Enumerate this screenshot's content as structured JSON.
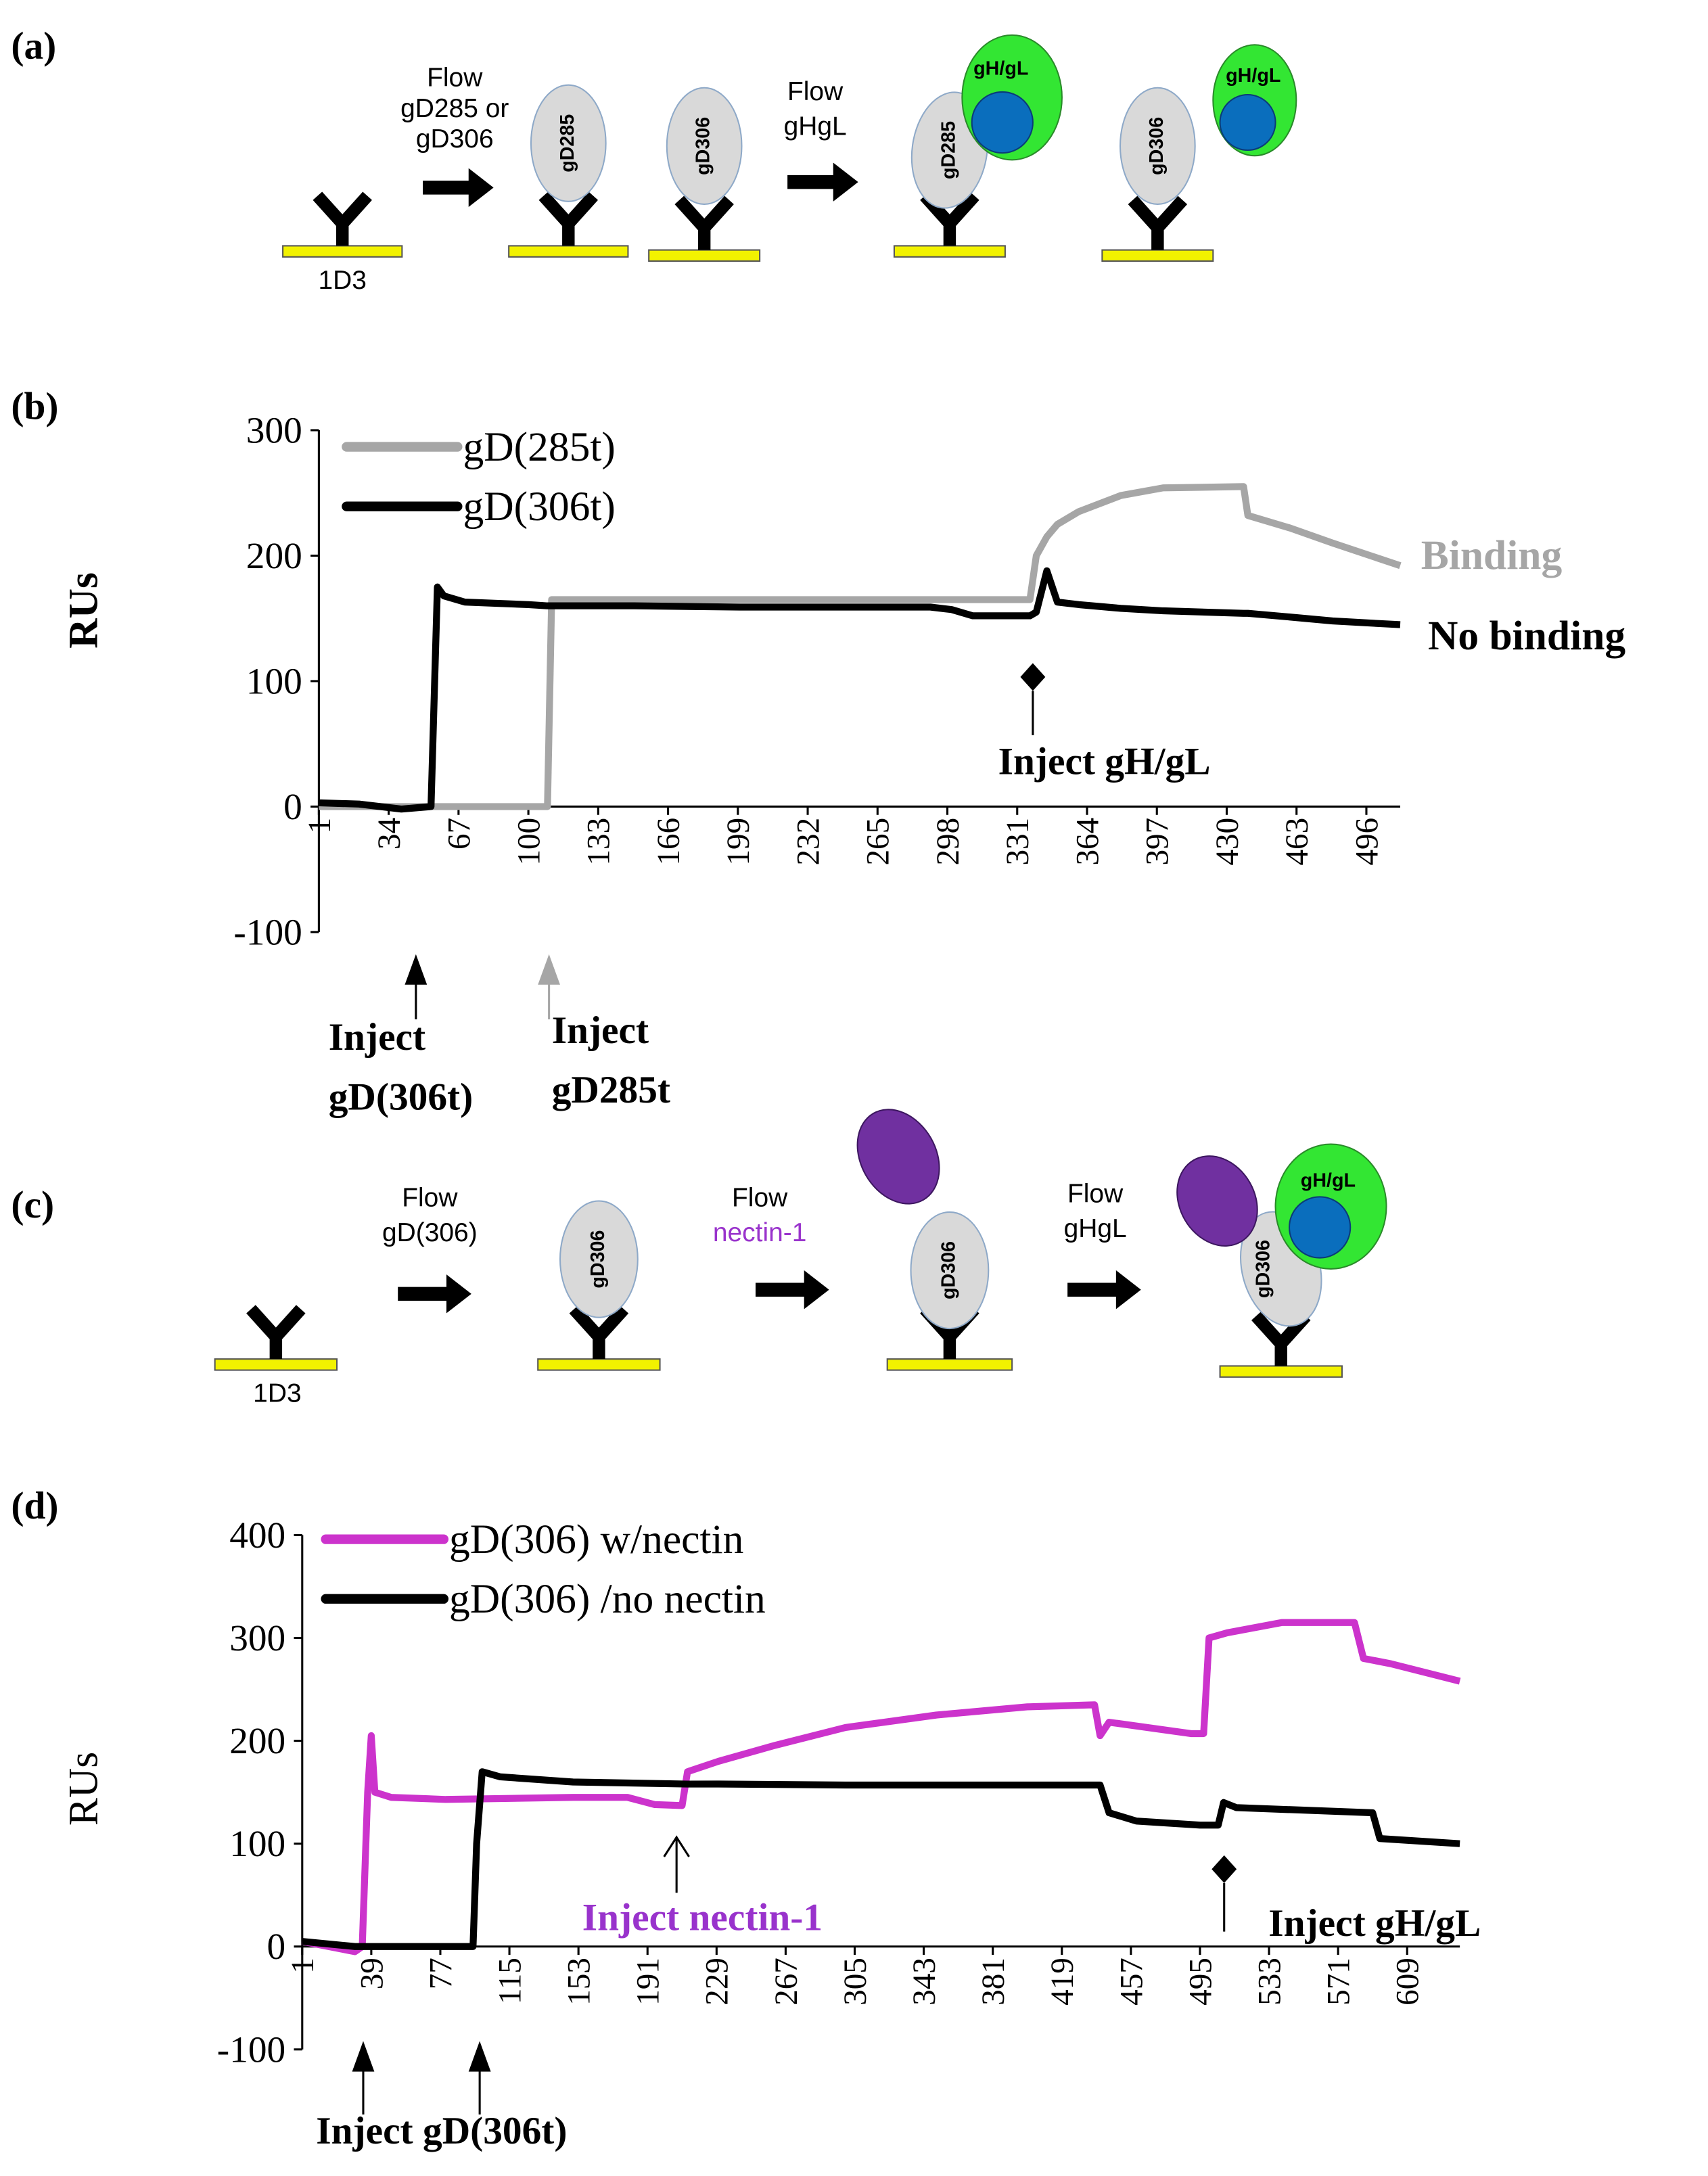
{
  "panels": [
    "(a)",
    "(b)",
    "(c)",
    "(d)"
  ],
  "diagram_a": {
    "flow1": [
      "Flow",
      "gD285 or",
      "gD306"
    ],
    "labels": [
      "gD285",
      "gD306"
    ],
    "flow2": [
      "Flow",
      "gHgL"
    ],
    "complex": [
      "gD285",
      "gH/gL",
      "gD306",
      "gH/gL"
    ],
    "base": "1D3"
  },
  "diagram_c": {
    "flow1": [
      "Flow",
      "gD(306)"
    ],
    "label1": "gD306",
    "flow2": [
      "Flow",
      "nectin-1"
    ],
    "label2": "gD306",
    "flow3": [
      "Flow",
      "gHgL"
    ],
    "complex": [
      "gH/gL",
      "gD306"
    ],
    "base": "1D3"
  },
  "chart_data": [
    {
      "type": "line",
      "ylabel": "RUs",
      "xlim": [
        1,
        512
      ],
      "xticks": [
        1,
        34,
        67,
        100,
        133,
        166,
        199,
        232,
        265,
        298,
        331,
        364,
        397,
        430,
        463,
        496
      ],
      "ylim": [
        -100,
        300
      ],
      "yticks": [
        -100,
        0,
        100,
        200,
        300
      ],
      "series": [
        {
          "name": "gD(285t)",
          "color": "#a6a6a6",
          "x": [
            1,
            20,
            40,
            54,
            57,
            60,
            70,
            100,
            109,
            111,
            150,
            200,
            290,
            300,
            310,
            337,
            340,
            345,
            350,
            360,
            380,
            400,
            438,
            440,
            460,
            480,
            512
          ],
          "values": [
            0,
            0,
            0,
            0,
            0,
            0,
            0,
            0,
            0,
            165,
            165,
            165,
            165,
            165,
            165,
            165,
            200,
            215,
            225,
            235,
            248,
            254,
            255,
            232,
            222,
            210,
            192
          ]
        },
        {
          "name": "gD(306t)",
          "color": "#000000",
          "x": [
            1,
            20,
            40,
            54,
            57,
            60,
            70,
            100,
            109,
            111,
            150,
            200,
            290,
            300,
            310,
            337,
            340,
            345,
            350,
            360,
            380,
            400,
            438,
            440,
            460,
            480,
            512
          ],
          "values": [
            3,
            2,
            -2,
            0,
            175,
            168,
            163,
            161,
            160,
            160,
            160,
            159,
            159,
            157,
            152,
            152,
            155,
            188,
            163,
            161,
            158,
            156,
            154,
            154,
            151,
            148,
            145
          ]
        }
      ],
      "annotations": [
        "Binding",
        "No binding",
        "Inject gH/gL",
        "Inject",
        "gD(306t)",
        "Inject",
        "gD285t"
      ]
    },
    {
      "type": "line",
      "ylabel": "RUs",
      "xlim": [
        1,
        638
      ],
      "xticks": [
        1,
        39,
        77,
        115,
        153,
        191,
        229,
        267,
        305,
        343,
        381,
        419,
        457,
        495,
        533,
        571,
        609
      ],
      "ylim": [
        -100,
        400
      ],
      "yticks": [
        -100,
        0,
        100,
        200,
        300,
        400
      ],
      "series": [
        {
          "name": "gD(306) w/nectin",
          "color": "#cc33cc",
          "x": [
            1,
            30,
            34,
            37,
            39,
            41,
            50,
            80,
            150,
            180,
            195,
            210,
            213,
            230,
            260,
            300,
            350,
            400,
            437,
            440,
            445,
            490,
            497,
            500,
            510,
            540,
            580,
            585,
            600,
            638
          ],
          "values": [
            5,
            -5,
            0,
            150,
            205,
            150,
            145,
            143,
            145,
            145,
            138,
            137,
            170,
            180,
            195,
            213,
            225,
            233,
            235,
            205,
            218,
            207,
            207,
            300,
            305,
            315,
            315,
            280,
            275,
            258
          ]
        },
        {
          "name": "gD(306) /no nectin",
          "color": "#000000",
          "x": [
            1,
            30,
            95,
            97,
            100,
            110,
            150,
            213,
            230,
            300,
            440,
            445,
            460,
            495,
            505,
            508,
            515,
            590,
            594,
            638
          ],
          "values": [
            5,
            0,
            0,
            100,
            170,
            165,
            160,
            158,
            158,
            157,
            157,
            130,
            122,
            118,
            118,
            140,
            135,
            130,
            105,
            100
          ]
        }
      ],
      "annotations": [
        "Inject nectin-1",
        "Inject gH/gL",
        "Inject gD(306t)"
      ]
    }
  ]
}
